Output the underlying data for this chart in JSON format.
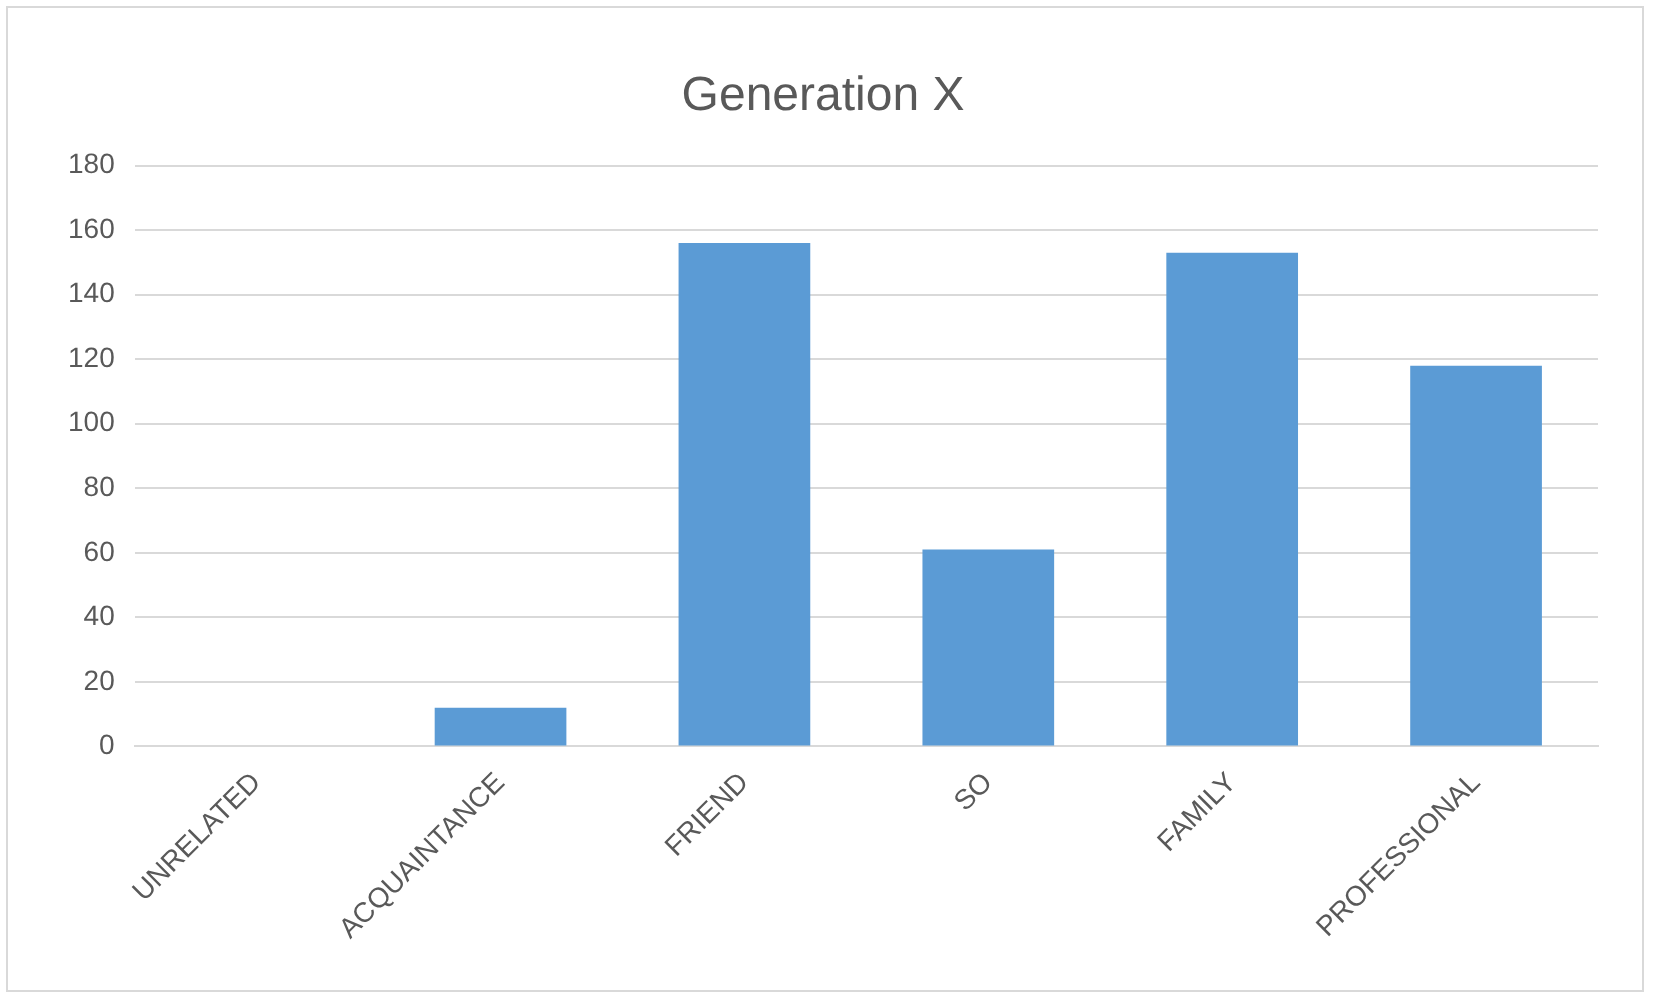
{
  "chart_data": {
    "type": "bar",
    "title": "Generation X",
    "categories": [
      "UNRELATED",
      "ACQUAINTANCE",
      "FRIEND",
      "SO",
      "FAMILY",
      "PROFESSIONAL"
    ],
    "values": [
      0,
      12,
      156,
      61,
      153,
      118
    ],
    "color": "#5b9bd5",
    "ylim": [
      0,
      180
    ],
    "yticks": [
      0,
      20,
      40,
      60,
      80,
      100,
      120,
      140,
      160,
      180
    ],
    "grid": "y"
  }
}
